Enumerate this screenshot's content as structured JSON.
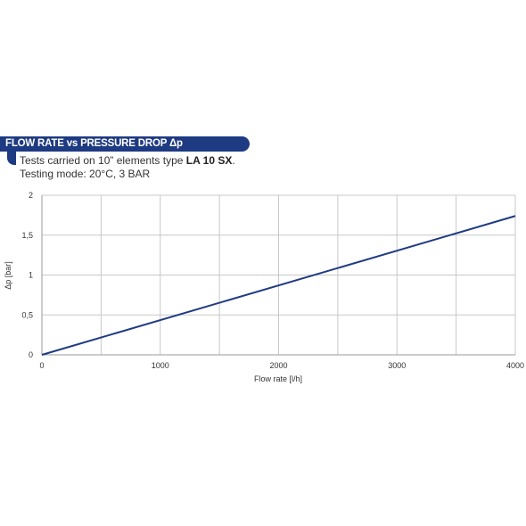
{
  "header": {
    "title": "FLOW RATE vs PRESSURE DROP Δp",
    "line1_prefix": "Tests carried on 10” elements type ",
    "line1_bold": "LA 10 SX",
    "line1_suffix": ".",
    "line2": "Testing mode: 20°C, 3 BAR"
  },
  "colors": {
    "header_bg": "#1e3a82",
    "series_line": "#1e3a82",
    "grid": "#c8c8c8"
  },
  "chart_data": {
    "type": "line",
    "title": "FLOW RATE vs PRESSURE DROP Δp",
    "xlabel": "Flow rate [l/h]",
    "ylabel": "Δp [bar]",
    "xlim": [
      0,
      4000
    ],
    "ylim": [
      0,
      2
    ],
    "x_ticks": [
      0,
      1000,
      2000,
      3000,
      4000
    ],
    "x_tick_labels": [
      "0",
      "1000",
      "2000",
      "3000",
      "4000"
    ],
    "y_ticks": [
      0,
      0.5,
      1,
      1.5,
      2
    ],
    "y_tick_labels": [
      "0",
      "0,5",
      "1",
      "1,5",
      "2"
    ],
    "grid": true,
    "grid_x_step": 500,
    "grid_y_step": 0.5,
    "legend": "none",
    "series": [
      {
        "x": [
          0,
          4000
        ],
        "y": [
          0,
          1.74
        ]
      }
    ]
  }
}
